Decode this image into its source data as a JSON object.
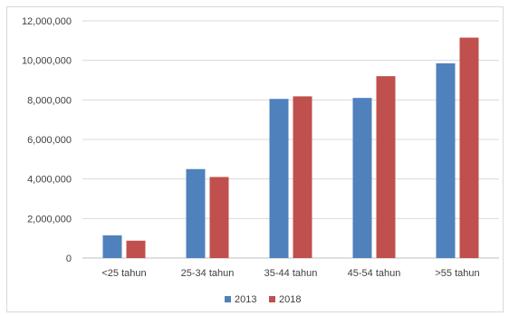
{
  "chart_data": {
    "type": "bar",
    "categories": [
      "<25 tahun",
      "25-34 tahun",
      "35-44 tahun",
      "45-54 tahun",
      ">55 tahun"
    ],
    "series": [
      {
        "name": "2013",
        "color": "#4f81bd",
        "values": [
          1150000,
          4500000,
          8050000,
          8100000,
          9850000
        ]
      },
      {
        "name": "2018",
        "color": "#c0504d",
        "values": [
          880000,
          4100000,
          8180000,
          9200000,
          11150000
        ]
      }
    ],
    "y_ticks": [
      "0",
      "2,000,000",
      "4,000,000",
      "6,000,000",
      "8,000,000",
      "10,000,000",
      "12,000,000"
    ],
    "ylim": [
      0,
      12000000
    ],
    "grid": true,
    "legend_position": "bottom-center",
    "gridline_color": "#d9d9d9"
  }
}
